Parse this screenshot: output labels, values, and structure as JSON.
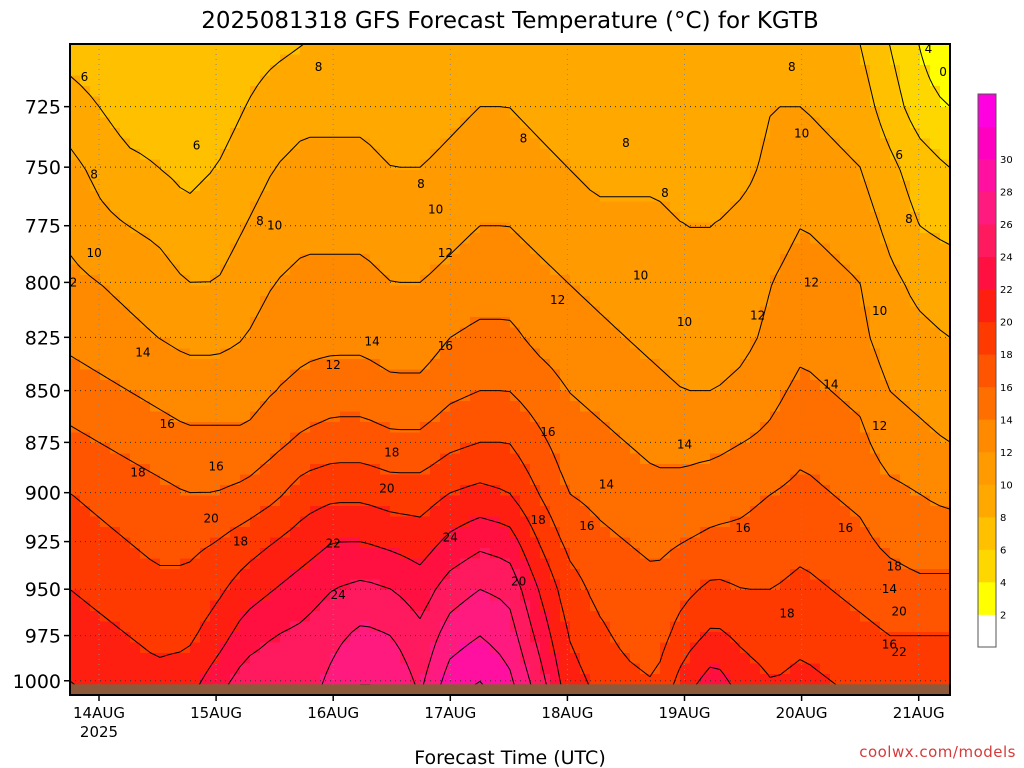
{
  "header": {
    "title": "2025081318 GFS Forecast Temperature (°C) for KGTB"
  },
  "footer": {
    "credit": "coolwx.com/models"
  },
  "chart_data": {
    "type": "heatmap",
    "title": "2025081318 GFS Forecast Temperature (°C) for KGTB",
    "xlabel": "Forecast Time (UTC)",
    "ylabel": "",
    "y_scale": "log-pressure (hPa)",
    "y_inverted": true,
    "ylim": [
      1008,
      700
    ],
    "y_ticks": [
      725,
      750,
      775,
      800,
      825,
      850,
      875,
      900,
      925,
      950,
      975,
      1000
    ],
    "x_range": [
      "2025-08-13 18Z",
      "2025-08-21 06Z"
    ],
    "x_ticks": [
      {
        "label": "14AUG",
        "sub": "2025"
      },
      {
        "label": "15AUG",
        "sub": ""
      },
      {
        "label": "16AUG",
        "sub": ""
      },
      {
        "label": "17AUG",
        "sub": ""
      },
      {
        "label": "18AUG",
        "sub": ""
      },
      {
        "label": "19AUG",
        "sub": ""
      },
      {
        "label": "20AUG",
        "sub": ""
      },
      {
        "label": "21AUG",
        "sub": ""
      }
    ],
    "grid": true,
    "colorbar": {
      "position": "right",
      "levels": [
        0,
        2,
        4,
        6,
        8,
        10,
        12,
        14,
        16,
        18,
        20,
        22,
        24,
        26,
        28,
        30,
        32
      ],
      "tick_labels": [
        2,
        4,
        6,
        8,
        10,
        12,
        14,
        16,
        18,
        20,
        22,
        24,
        26,
        28,
        30
      ],
      "colors": [
        "#ffffff",
        "#ffff00",
        "#ffd700",
        "#ffc000",
        "#ffa800",
        "#ff9a00",
        "#ff8a00",
        "#ff6f00",
        "#ff5500",
        "#ff3a00",
        "#ff1f10",
        "#ff1040",
        "#ff1a60",
        "#ff1a80",
        "#ff10a0",
        "#ff00c0",
        "#ff00e0"
      ]
    },
    "temperature_profiles": {
      "pressure_levels": [
        700,
        725,
        750,
        775,
        800,
        825,
        850,
        875,
        900,
        925,
        950,
        975,
        1000
      ],
      "times": [
        "13AUG 18Z",
        "14AUG 00Z",
        "14AUG 06Z",
        "14AUG 12Z",
        "14AUG 18Z",
        "15AUG 00Z",
        "15AUG 06Z",
        "15AUG 12Z",
        "15AUG 18Z",
        "16AUG 00Z",
        "16AUG 06Z",
        "16AUG 12Z",
        "16AUG 18Z",
        "17AUG 00Z",
        "17AUG 06Z",
        "17AUG 12Z",
        "17AUG 18Z",
        "18AUG 00Z",
        "18AUG 06Z",
        "18AUG 12Z",
        "18AUG 18Z",
        "19AUG 00Z",
        "19AUG 06Z",
        "19AUG 12Z",
        "19AUG 18Z",
        "20AUG 00Z",
        "20AUG 06Z",
        "20AUG 12Z",
        "20AUG 18Z",
        "21AUG 00Z",
        "21AUG 06Z"
      ],
      "values": [
        [
          7,
          6.5,
          6,
          6,
          6,
          6.5,
          7,
          7.5,
          8,
          8.5,
          8.5,
          8,
          8,
          8.5,
          9,
          9,
          8.5,
          8,
          8,
          8,
          8.5,
          8,
          8,
          8.5,
          9,
          9,
          8.5,
          8,
          6,
          4,
          2
        ],
        [
          9,
          8,
          7,
          7,
          6.5,
          7,
          8,
          9,
          9.5,
          9.5,
          9.5,
          9,
          9,
          9.5,
          10,
          10,
          9.5,
          9,
          8.5,
          8.5,
          9,
          8.5,
          8.5,
          9,
          10,
          10,
          9.5,
          9,
          7,
          5,
          4
        ],
        [
          10.5,
          9.5,
          8.5,
          8,
          7.5,
          8,
          9,
          10,
          10.5,
          10.5,
          10.5,
          10,
          10,
          10.5,
          11,
          11,
          10.5,
          10,
          9.5,
          9.5,
          9.5,
          9,
          9,
          9.5,
          10.5,
          11,
          10.5,
          10,
          8.5,
          7,
          6
        ],
        [
          11.5,
          10.5,
          10,
          9.5,
          8.5,
          9,
          10,
          11,
          11.5,
          11.5,
          11.5,
          11,
          11,
          11.5,
          12,
          12,
          11.5,
          11,
          10.5,
          10.5,
          10.5,
          10,
          10,
          10.5,
          11,
          12,
          11.5,
          11,
          9.5,
          8,
          7.5
        ],
        [
          12.5,
          12,
          11.5,
          11,
          10,
          10,
          11,
          12,
          12.5,
          12.5,
          12.5,
          12,
          12,
          12.5,
          13,
          13,
          12.5,
          12,
          11.5,
          11,
          11,
          10.5,
          10.5,
          11,
          12,
          13,
          12.5,
          12,
          10.5,
          9.5,
          9
        ],
        [
          13.5,
          13,
          12.5,
          12,
          11.5,
          11.5,
          12,
          13,
          13.5,
          13.5,
          13.5,
          13,
          13,
          14,
          14.5,
          14.5,
          13.5,
          13,
          12.5,
          12,
          11.5,
          11,
          11,
          11.5,
          12.5,
          13.5,
          13,
          12.5,
          11,
          10.5,
          10
        ],
        [
          15,
          14.5,
          14,
          13.5,
          13,
          13,
          13,
          14,
          14.5,
          15,
          15,
          14.5,
          14.5,
          15.5,
          16,
          16,
          15,
          14,
          13.5,
          13,
          12.5,
          12,
          12,
          12.5,
          13.5,
          14.5,
          14,
          13.5,
          12,
          11.5,
          11
        ],
        [
          16.5,
          16,
          15.5,
          15,
          14.5,
          14.5,
          14.5,
          15.5,
          16.5,
          17,
          17,
          16.5,
          16.5,
          17.5,
          18,
          18,
          16.5,
          15,
          14.5,
          14,
          13.5,
          13.5,
          13.5,
          14,
          14.5,
          15.5,
          15,
          14.5,
          13,
          12.5,
          12
        ],
        [
          18,
          17.5,
          17,
          16.5,
          16,
          16,
          16.5,
          17.5,
          19,
          19.5,
          19.5,
          19,
          19,
          20,
          20.5,
          20,
          18,
          16,
          15.5,
          15,
          14.5,
          14.5,
          15,
          15.5,
          16,
          16.5,
          16,
          15.5,
          14.5,
          14,
          13.5
        ],
        [
          19,
          18.5,
          18,
          17.5,
          17.5,
          18,
          19,
          20,
          21,
          22,
          22,
          21.5,
          21,
          22.5,
          23.5,
          23,
          20,
          17.5,
          16.5,
          16,
          15.5,
          16,
          16.5,
          16.5,
          17,
          17.5,
          17,
          16.5,
          15.5,
          15,
          15
        ],
        [
          20,
          19.5,
          19,
          18.5,
          18.5,
          19.5,
          21,
          22,
          23,
          24,
          24.5,
          24,
          23,
          25,
          26,
          25.5,
          22,
          19,
          17.5,
          17,
          16.5,
          17.5,
          18.5,
          18,
          18,
          18.5,
          18,
          17.5,
          17,
          16.5,
          16.5
        ],
        [
          21,
          20.5,
          20,
          19.5,
          19.5,
          21,
          23,
          24,
          24.5,
          25.5,
          26.5,
          26,
          24.5,
          27,
          28,
          27,
          23.5,
          20,
          18.5,
          17.5,
          17,
          19,
          20.5,
          19.5,
          19,
          19.5,
          19,
          18.5,
          18,
          18,
          18
        ],
        [
          22,
          21.5,
          21,
          20.5,
          21,
          23,
          25,
          25.5,
          25,
          26.5,
          28,
          27.5,
          25.5,
          29,
          30,
          28.5,
          25,
          21,
          19.5,
          18.5,
          18,
          21,
          23,
          21,
          20,
          20.5,
          20,
          19.5,
          19,
          19.5,
          19.5
        ]
      ]
    },
    "contour_labels": [
      {
        "text": "6",
        "x": "13AUG 21Z",
        "p": 713
      },
      {
        "text": "6",
        "x": "14AUG 20Z",
        "p": 741
      },
      {
        "text": "6",
        "x": "20AUG 20Z",
        "p": 745
      },
      {
        "text": "4",
        "x": "21AUG 02Z",
        "p": 702
      },
      {
        "text": "8",
        "x": "13AUG 23Z",
        "p": 753
      },
      {
        "text": "8",
        "x": "15AUG 09Z",
        "p": 773
      },
      {
        "text": "8",
        "x": "15AUG 21Z",
        "p": 709
      },
      {
        "text": "8",
        "x": "16AUG 18Z",
        "p": 757
      },
      {
        "text": "8",
        "x": "17AUG 15Z",
        "p": 738
      },
      {
        "text": "8",
        "x": "18AUG 12Z",
        "p": 740
      },
      {
        "text": "8",
        "x": "18AUG 20Z",
        "p": 761
      },
      {
        "text": "8",
        "x": "19AUG 22Z",
        "p": 709
      },
      {
        "text": "8",
        "x": "20AUG 22Z",
        "p": 772
      },
      {
        "text": "10",
        "x": "13AUG 23Z",
        "p": 787
      },
      {
        "text": "10",
        "x": "15AUG 12Z",
        "p": 775
      },
      {
        "text": "10",
        "x": "16AUG 21Z",
        "p": 768
      },
      {
        "text": "10",
        "x": "18AUG 15Z",
        "p": 797
      },
      {
        "text": "10",
        "x": "19AUG 00Z",
        "p": 818
      },
      {
        "text": "10",
        "x": "20AUG 00Z",
        "p": 736
      },
      {
        "text": "10",
        "x": "20AUG 16Z",
        "p": 813
      },
      {
        "text": "12",
        "x": "13AUG 18Z",
        "p": 800
      },
      {
        "text": "12",
        "x": "16AUG 00Z",
        "p": 838
      },
      {
        "text": "12",
        "x": "16AUG 23Z",
        "p": 787
      },
      {
        "text": "12",
        "x": "17AUG 22Z",
        "p": 808
      },
      {
        "text": "12",
        "x": "19AUG 15Z",
        "p": 815
      },
      {
        "text": "12",
        "x": "20AUG 02Z",
        "p": 800
      },
      {
        "text": "12",
        "x": "20AUG 16Z",
        "p": 867
      },
      {
        "text": "14",
        "x": "14AUG 09Z",
        "p": 832
      },
      {
        "text": "14",
        "x": "16AUG 08Z",
        "p": 827
      },
      {
        "text": "14",
        "x": "18AUG 08Z",
        "p": 896
      },
      {
        "text": "14",
        "x": "19AUG 00Z",
        "p": 876
      },
      {
        "text": "14",
        "x": "20AUG 06Z",
        "p": 847
      },
      {
        "text": "14",
        "x": "20AUG 18Z",
        "p": 950
      },
      {
        "text": "16",
        "x": "14AUG 14Z",
        "p": 866
      },
      {
        "text": "16",
        "x": "15AUG 00Z",
        "p": 887
      },
      {
        "text": "16",
        "x": "16AUG 23Z",
        "p": 829
      },
      {
        "text": "16",
        "x": "17AUG 20Z",
        "p": 870
      },
      {
        "text": "16",
        "x": "18AUG 04Z",
        "p": 917
      },
      {
        "text": "16",
        "x": "19AUG 12Z",
        "p": 918
      },
      {
        "text": "16",
        "x": "20AUG 09Z",
        "p": 918
      },
      {
        "text": "16",
        "x": "20AUG 18Z",
        "p": 980
      },
      {
        "text": "18",
        "x": "14AUG 08Z",
        "p": 890
      },
      {
        "text": "18",
        "x": "15AUG 05Z",
        "p": 925
      },
      {
        "text": "18",
        "x": "16AUG 12Z",
        "p": 880
      },
      {
        "text": "18",
        "x": "17AUG 18Z",
        "p": 914
      },
      {
        "text": "18",
        "x": "19AUG 21Z",
        "p": 963
      },
      {
        "text": "18",
        "x": "20AUG 19Z",
        "p": 938
      },
      {
        "text": "20",
        "x": "14AUG 23Z",
        "p": 913
      },
      {
        "text": "20",
        "x": "16AUG 11Z",
        "p": 898
      },
      {
        "text": "20",
        "x": "17AUG 14Z",
        "p": 946
      },
      {
        "text": "20",
        "x": "20AUG 20Z",
        "p": 962
      },
      {
        "text": "22",
        "x": "16AUG 00Z",
        "p": 926
      },
      {
        "text": "22",
        "x": "20AUG 20Z",
        "p": 984
      },
      {
        "text": "24",
        "x": "17AUG 00Z",
        "p": 923
      },
      {
        "text": "24",
        "x": "16AUG 01Z",
        "p": 953
      },
      {
        "text": "0",
        "x": "21AUG 05Z",
        "p": 711
      }
    ]
  }
}
